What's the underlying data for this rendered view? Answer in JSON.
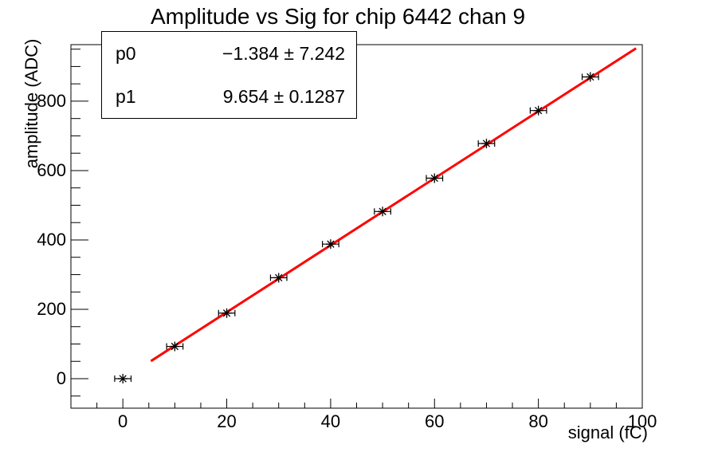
{
  "title": "Amplitude vs Sig for chip 6442 chan 9",
  "stat_box": {
    "rows": [
      {
        "name": "p0",
        "value": "−1.384 ± 7.242"
      },
      {
        "name": "p1",
        "value": "9.654 ± 0.1287"
      }
    ]
  },
  "chart_data": {
    "type": "scatter",
    "title": "Amplitude vs Sig for chip 6442 chan 9",
    "xlabel": "signal (fC)",
    "ylabel": "amplitude (ADC)",
    "xlim": [
      -10,
      100
    ],
    "ylim": [
      -85,
      963
    ],
    "xticks": [
      0,
      20,
      40,
      60,
      80,
      100
    ],
    "x_minor_step": 5,
    "yticks": [
      0,
      200,
      400,
      600,
      800
    ],
    "y_minor_step": 50,
    "grid": false,
    "points": {
      "x": [
        0,
        10,
        20,
        30,
        40,
        50,
        60,
        70,
        80,
        90
      ],
      "y": [
        0,
        93,
        189,
        291,
        388,
        482,
        578,
        678,
        773,
        870
      ],
      "xerr": 1.5,
      "marker": "asterisk",
      "color": "#000000"
    },
    "fit": {
      "label_p0": -1.384,
      "label_p1": 9.654,
      "x_start": 5.4,
      "x_end": 98.8,
      "color": "#ff0000"
    }
  }
}
